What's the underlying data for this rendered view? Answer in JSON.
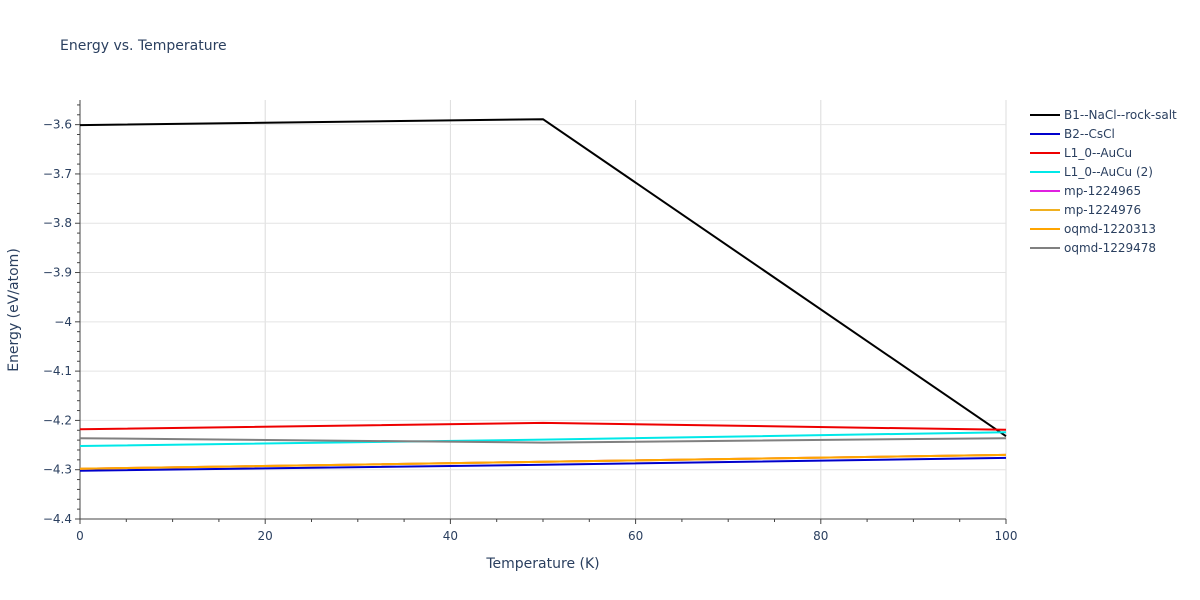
{
  "chart_data": {
    "type": "line",
    "title": "Energy vs. Temperature",
    "xlabel": "Temperature (K)",
    "ylabel": "Energy (eV/atom)",
    "xlim": [
      0,
      100
    ],
    "ylim": [
      -4.4,
      -3.55
    ],
    "x_ticks": [
      0,
      20,
      40,
      60,
      80,
      100
    ],
    "x_tick_labels": [
      "0",
      "20",
      "40",
      "60",
      "80",
      "100"
    ],
    "y_ticks": [
      -3.6,
      -3.7,
      -3.8,
      -3.9,
      -4.0,
      -4.1,
      -4.2,
      -4.3,
      -4.4
    ],
    "y_tick_labels": [
      "−3.6",
      "−3.7",
      "−3.8",
      "−3.9",
      "−4",
      "−4.1",
      "−4.2",
      "−4.3",
      "−4.4"
    ],
    "grid": true,
    "legend_position": "top-right",
    "series": [
      {
        "name": "B1--NaCl--rock-salt",
        "color": "#000000",
        "x": [
          0,
          50,
          100
        ],
        "y": [
          -3.601,
          -3.589,
          -4.232
        ]
      },
      {
        "name": "B2--CsCl",
        "color": "#0000cc",
        "x": [
          0,
          50,
          100
        ],
        "y": [
          -4.302,
          -4.29,
          -4.276
        ]
      },
      {
        "name": "L1_0--AuCu",
        "color": "#ee0000",
        "x": [
          0,
          50,
          100
        ],
        "y": [
          -4.218,
          -4.205,
          -4.219
        ]
      },
      {
        "name": "L1_0--AuCu (2)",
        "color": "#00e8e8",
        "x": [
          0,
          50,
          100
        ],
        "y": [
          -4.252,
          -4.239,
          -4.224
        ]
      },
      {
        "name": "mp-1224965",
        "color": "#e020e0",
        "x": [
          0,
          50,
          100
        ],
        "y": [
          -4.298,
          -4.284,
          -4.27
        ]
      },
      {
        "name": "mp-1224976",
        "color": "#f0b020",
        "x": [
          0,
          50,
          100
        ],
        "y": [
          -4.298,
          -4.284,
          -4.27
        ]
      },
      {
        "name": "oqmd-1220313",
        "color": "#ffa500",
        "x": [
          0,
          50,
          100
        ],
        "y": [
          -4.298,
          -4.284,
          -4.27
        ]
      },
      {
        "name": "oqmd-1229478",
        "color": "#808080",
        "x": [
          0,
          50,
          100
        ],
        "y": [
          -4.236,
          -4.245,
          -4.236
        ]
      }
    ]
  }
}
